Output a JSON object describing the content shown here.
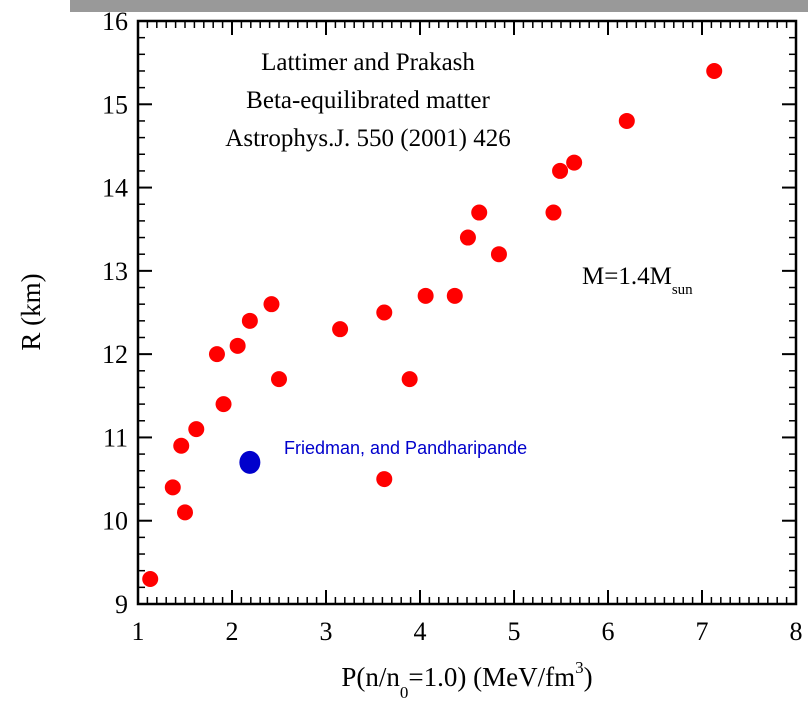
{
  "chart_data": {
    "type": "scatter",
    "title": "",
    "xlabel": {
      "main": "P(n/n",
      "sub": "0",
      "mid": "=1.0)  (MeV/fm",
      "sup": "3",
      "end": ")"
    },
    "ylabel": "R (km)",
    "xlim": [
      1,
      8
    ],
    "ylim": [
      9,
      16
    ],
    "x_ticks": [
      "1",
      "2",
      "3",
      "4",
      "5",
      "6",
      "7",
      "8"
    ],
    "y_ticks": [
      "9",
      "10",
      "11",
      "12",
      "13",
      "14",
      "15",
      "16"
    ],
    "grid": false,
    "series": [
      {
        "name": "",
        "color": "#ff0000",
        "points": [
          {
            "x": 1.13,
            "y": 9.3
          },
          {
            "x": 1.37,
            "y": 10.4
          },
          {
            "x": 1.46,
            "y": 10.9
          },
          {
            "x": 1.5,
            "y": 10.1
          },
          {
            "x": 1.62,
            "y": 11.1
          },
          {
            "x": 1.84,
            "y": 12.0
          },
          {
            "x": 1.91,
            "y": 11.4
          },
          {
            "x": 2.06,
            "y": 12.1
          },
          {
            "x": 2.19,
            "y": 12.4
          },
          {
            "x": 2.42,
            "y": 12.6
          },
          {
            "x": 2.5,
            "y": 11.7
          },
          {
            "x": 3.15,
            "y": 12.3
          },
          {
            "x": 3.62,
            "y": 12.5
          },
          {
            "x": 3.62,
            "y": 10.5
          },
          {
            "x": 3.89,
            "y": 11.7
          },
          {
            "x": 4.06,
            "y": 12.7
          },
          {
            "x": 4.37,
            "y": 12.7
          },
          {
            "x": 4.51,
            "y": 13.4
          },
          {
            "x": 4.63,
            "y": 13.7
          },
          {
            "x": 4.84,
            "y": 13.2
          },
          {
            "x": 5.42,
            "y": 13.7
          },
          {
            "x": 5.49,
            "y": 14.2
          },
          {
            "x": 5.64,
            "y": 14.3
          },
          {
            "x": 6.2,
            "y": 14.8
          },
          {
            "x": 7.13,
            "y": 15.4
          }
        ]
      },
      {
        "name": "Friedman, and Pandharipande",
        "color": "#0000cc",
        "points": [
          {
            "x": 2.19,
            "y": 10.7
          }
        ]
      }
    ],
    "annotations": {
      "source_lines": [
        "Lattimer and Prakash",
        "Beta-equilibrated matter",
        "Astrophys.J. 550 (2001) 426"
      ],
      "mass_main": "M=1.4M",
      "mass_sub": "sun"
    }
  }
}
